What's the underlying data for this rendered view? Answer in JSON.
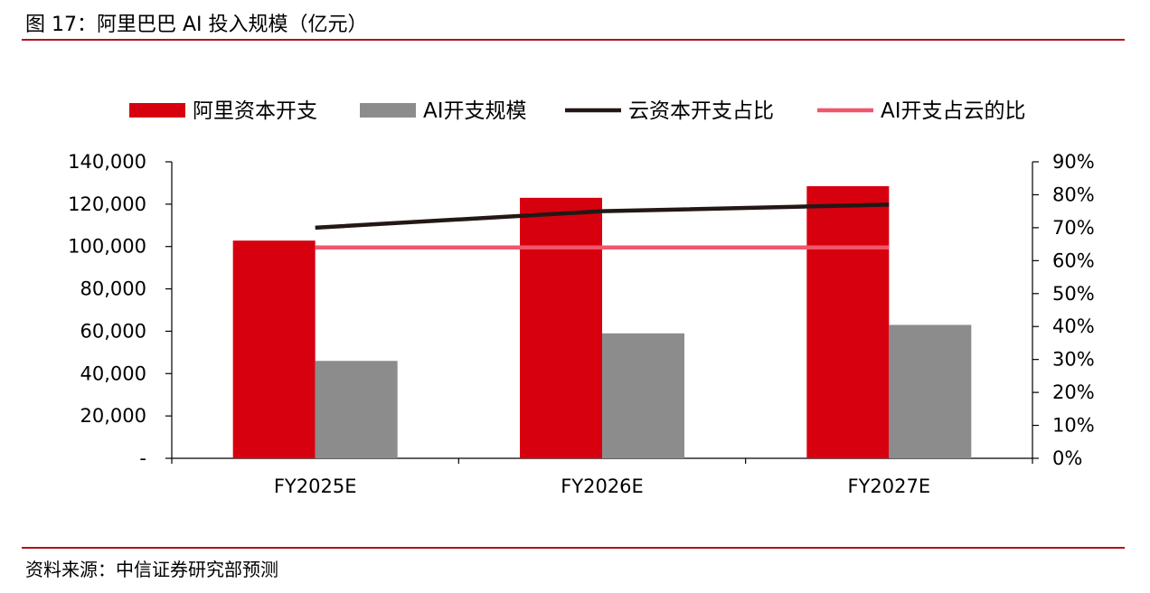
{
  "figure": {
    "title": "图 17：阿里巴巴 AI 投入规模（亿元）",
    "source": "资料来源：中信证券研究部预测"
  },
  "chart_data": {
    "type": "bar",
    "categories": [
      "FY2025E",
      "FY2026E",
      "FY2027E"
    ],
    "series": [
      {
        "name": "阿里资本开支",
        "kind": "bar",
        "axis": "left",
        "color": "#d7000f",
        "values": [
          102800,
          123000,
          128500
        ]
      },
      {
        "name": "AI开支规模",
        "kind": "bar",
        "axis": "left",
        "color": "#8c8c8c",
        "values": [
          46000,
          59000,
          63000
        ]
      },
      {
        "name": "云资本开支占比",
        "kind": "line",
        "axis": "right",
        "color": "#231815",
        "values": [
          0.7,
          0.75,
          0.77
        ]
      },
      {
        "name": "AI开支占云的比",
        "kind": "line",
        "axis": "right",
        "color": "#f0566c",
        "values": [
          0.64,
          0.64,
          0.64
        ]
      }
    ],
    "y_left": {
      "ylim": [
        0,
        140000
      ],
      "ticks": [
        "-",
        "20,000",
        "40,000",
        "60,000",
        "80,000",
        "100,000",
        "120,000",
        "140,000"
      ]
    },
    "y_right": {
      "ylim": [
        0,
        0.9
      ],
      "ticks": [
        "0%",
        "10%",
        "20%",
        "30%",
        "40%",
        "50%",
        "60%",
        "70%",
        "80%",
        "90%"
      ]
    },
    "legend_position": "top",
    "grid": false
  }
}
